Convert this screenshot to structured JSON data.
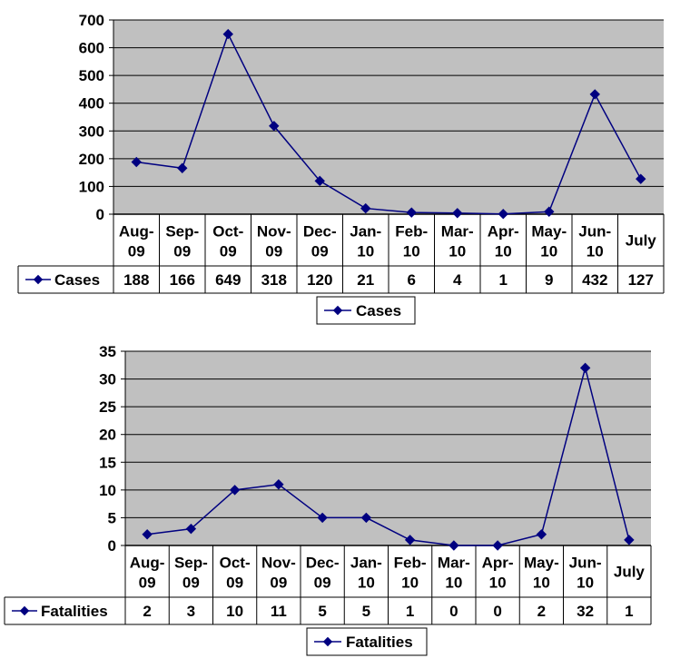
{
  "chart_data": [
    {
      "type": "line",
      "categories": [
        [
          "Aug-",
          "09"
        ],
        [
          "Sep-",
          "09"
        ],
        [
          "Oct-",
          "09"
        ],
        [
          "Nov-",
          "09"
        ],
        [
          "Dec-",
          "09"
        ],
        [
          "Jan-",
          "10"
        ],
        [
          "Feb-",
          "10"
        ],
        [
          "Mar-",
          "10"
        ],
        [
          "Apr-",
          "10"
        ],
        [
          "May-",
          "10"
        ],
        [
          "Jun-",
          "10"
        ],
        [
          "July"
        ]
      ],
      "series": [
        {
          "name": "Cases",
          "values": [
            188,
            166,
            649,
            318,
            120,
            21,
            6,
            4,
            1,
            9,
            432,
            127
          ]
        }
      ],
      "ylim": [
        0,
        700
      ],
      "yticks": [
        0,
        100,
        200,
        300,
        400,
        500,
        600,
        700
      ],
      "grid": true,
      "legend": "bottom",
      "plot_color": "#c0c0c0",
      "line_color": "#000080"
    },
    {
      "type": "line",
      "categories": [
        [
          "Aug-",
          "09"
        ],
        [
          "Sep-",
          "09"
        ],
        [
          "Oct-",
          "09"
        ],
        [
          "Nov-",
          "09"
        ],
        [
          "Dec-",
          "09"
        ],
        [
          "Jan-",
          "10"
        ],
        [
          "Feb-",
          "10"
        ],
        [
          "Mar-",
          "10"
        ],
        [
          "Apr-",
          "10"
        ],
        [
          "May-",
          "10"
        ],
        [
          "Jun-",
          "10"
        ],
        [
          "July"
        ]
      ],
      "series": [
        {
          "name": "Fatalities",
          "values": [
            2,
            3,
            10,
            11,
            5,
            5,
            1,
            0,
            0,
            2,
            32,
            1
          ]
        }
      ],
      "ylim": [
        0,
        35
      ],
      "yticks": [
        0,
        5,
        10,
        15,
        20,
        25,
        30,
        35
      ],
      "grid": true,
      "legend": "bottom",
      "plot_color": "#c0c0c0",
      "line_color": "#000080"
    }
  ]
}
